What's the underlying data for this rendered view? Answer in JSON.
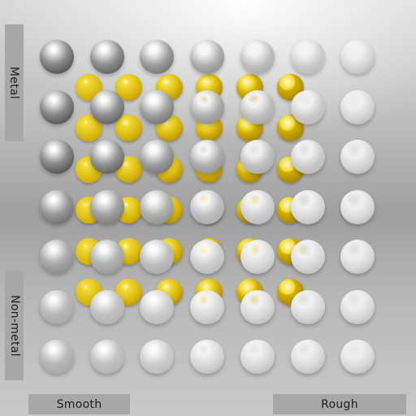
{
  "labels": {
    "metal": "Metal",
    "non_metal": "Non-metal",
    "smooth": "Smooth",
    "rough": "Rough"
  },
  "grid": {
    "front_rows": 7,
    "front_cols": 7,
    "back_rows": 6,
    "back_cols": 6,
    "front_material": "silver",
    "back_material": "gold",
    "metalness_by_row": [
      1.0,
      1.0,
      1.0,
      0.66,
      0.33,
      0.0,
      0.0
    ],
    "roughness_by_col": [
      0.0,
      0.1,
      0.25,
      0.45,
      0.65,
      0.8,
      0.95
    ]
  },
  "colors": {
    "gold": "#d8b600",
    "silver": "#d9d9d9",
    "label_bg": "#a7a7a7",
    "label_text": "#1f1f1f"
  }
}
